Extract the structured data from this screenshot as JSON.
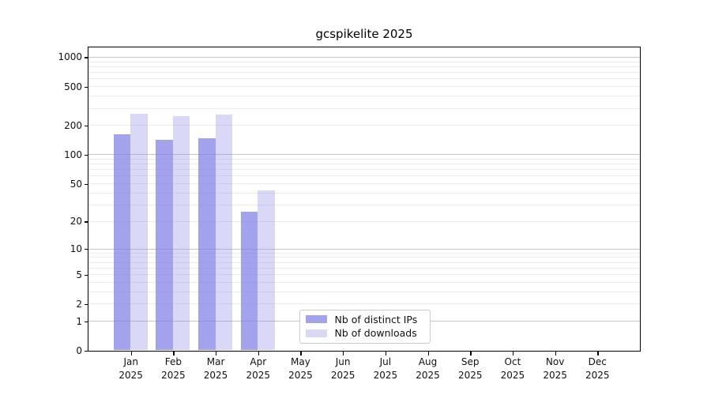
{
  "chart_data": {
    "type": "bar",
    "title": "gcspikelite 2025",
    "categories": [
      "Jan 2025",
      "Feb 2025",
      "Mar 2025",
      "Apr 2025",
      "May 2025",
      "Jun 2025",
      "Jul 2025",
      "Aug 2025",
      "Sep 2025",
      "Oct 2025",
      "Nov 2025",
      "Dec 2025"
    ],
    "series": [
      {
        "name": "Nb of distinct IPs",
        "key": "distinct-ips",
        "color": "rgba(128,128,230,0.72)",
        "color_hex_approx": "#a4a4ed",
        "values": [
          160,
          140,
          147,
          25,
          0,
          0,
          0,
          0,
          0,
          0,
          0,
          0
        ]
      },
      {
        "name": "Nb of downloads",
        "key": "downloads",
        "color": "rgba(128,128,230,0.30)",
        "color_hex_approx": "#d9d9f7",
        "values": [
          260,
          245,
          255,
          42,
          0,
          0,
          0,
          0,
          0,
          0,
          0,
          0
        ]
      }
    ],
    "xlabel": "",
    "ylabel": "",
    "y_scale": "log10(1+x)",
    "ylim": [
      0,
      1262
    ],
    "y_ticks": [
      0,
      1,
      2,
      5,
      10,
      20,
      50,
      100,
      200,
      500,
      1000
    ],
    "y_major_gridlines": [
      1,
      10,
      100,
      1000
    ],
    "y_minor_gridlines": [
      2,
      3,
      4,
      5,
      6,
      7,
      8,
      9,
      20,
      30,
      40,
      50,
      60,
      70,
      80,
      90,
      200,
      300,
      400,
      500,
      600,
      700,
      800,
      900
    ],
    "grid": true,
    "grid_major_color": "#c6c6c6",
    "grid_minor_color": "#ebebeb",
    "legend_position": "lower-center",
    "legend": [
      "Nb of distinct IPs",
      "Nb of downloads"
    ]
  }
}
